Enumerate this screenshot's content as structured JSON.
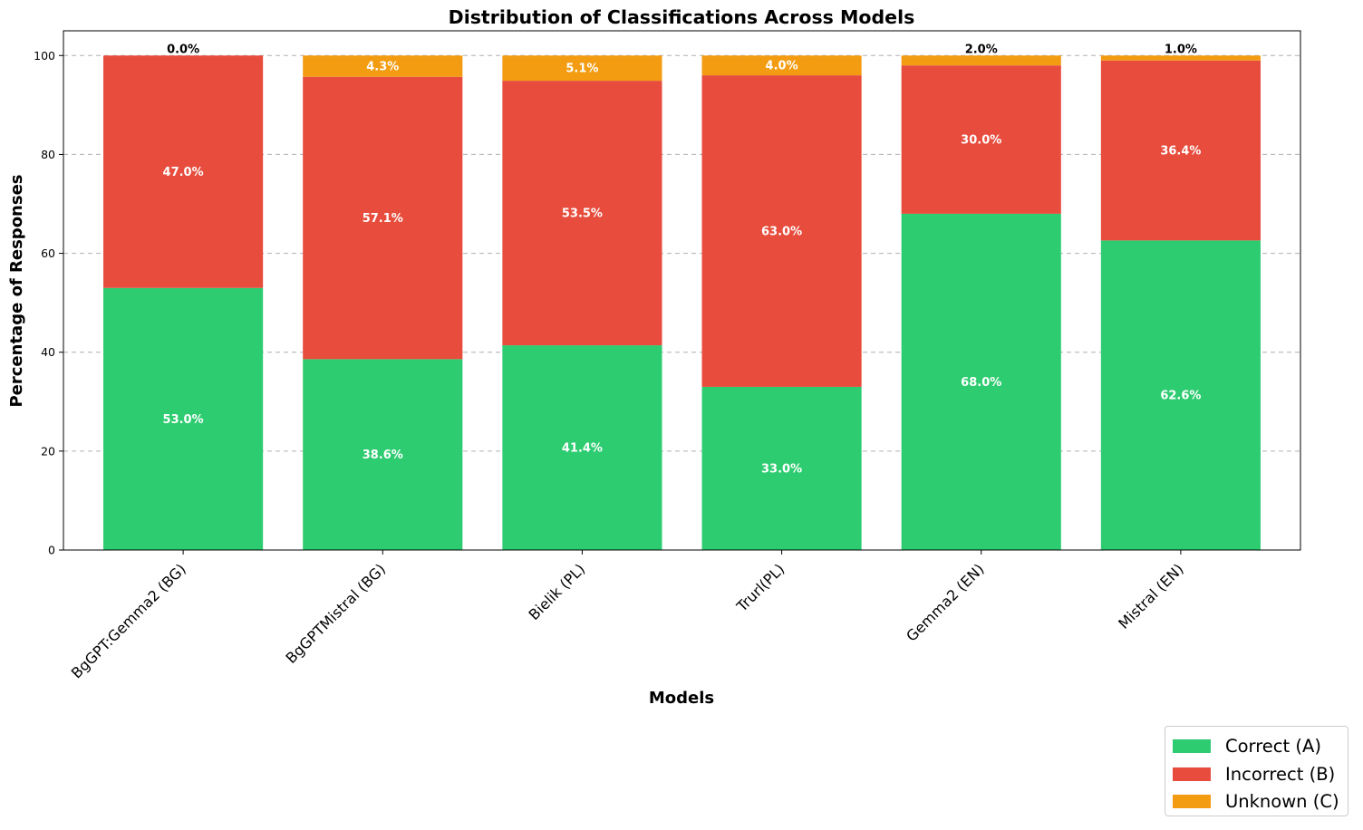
{
  "chart_data": {
    "type": "bar",
    "stacked": true,
    "title": "Distribution of Classifications Across Models",
    "xlabel": "Models",
    "ylabel": "Percentage of Responses",
    "categories": [
      "BgGPT:Gemma2 (BG)",
      "BgGPTMistral (BG)",
      "Bielik (PL)",
      "Trurl(PL)",
      "Gemma2 (EN)",
      "Mistral (EN)"
    ],
    "series": [
      {
        "name": "Correct (A)",
        "color": "#2ecc71",
        "values": [
          53.0,
          38.6,
          41.4,
          33.0,
          68.0,
          62.6
        ],
        "labels": [
          "53.0%",
          "38.6%",
          "41.4%",
          "33.0%",
          "68.0%",
          "62.6%"
        ]
      },
      {
        "name": "Incorrect (B)",
        "color": "#e74c3c",
        "values": [
          47.0,
          57.1,
          53.5,
          63.0,
          30.0,
          36.4
        ],
        "labels": [
          "47.0%",
          "57.1%",
          "53.5%",
          "63.0%",
          "30.0%",
          "36.4%"
        ]
      },
      {
        "name": "Unknown (C)",
        "color": "#f39c12",
        "values": [
          0.0,
          4.3,
          5.1,
          4.0,
          2.0,
          1.0
        ],
        "labels": [
          "0.0%",
          "4.3%",
          "5.1%",
          "4.0%",
          "2.0%",
          "1.0%"
        ]
      }
    ],
    "ylim": [
      0,
      105
    ],
    "yticks": [
      0,
      20,
      40,
      60,
      80,
      100
    ],
    "ytick_labels": [
      "0",
      "20",
      "40",
      "60",
      "80",
      "100"
    ],
    "grid": "y-dashed",
    "legend_position": "bottom-right-outside"
  }
}
